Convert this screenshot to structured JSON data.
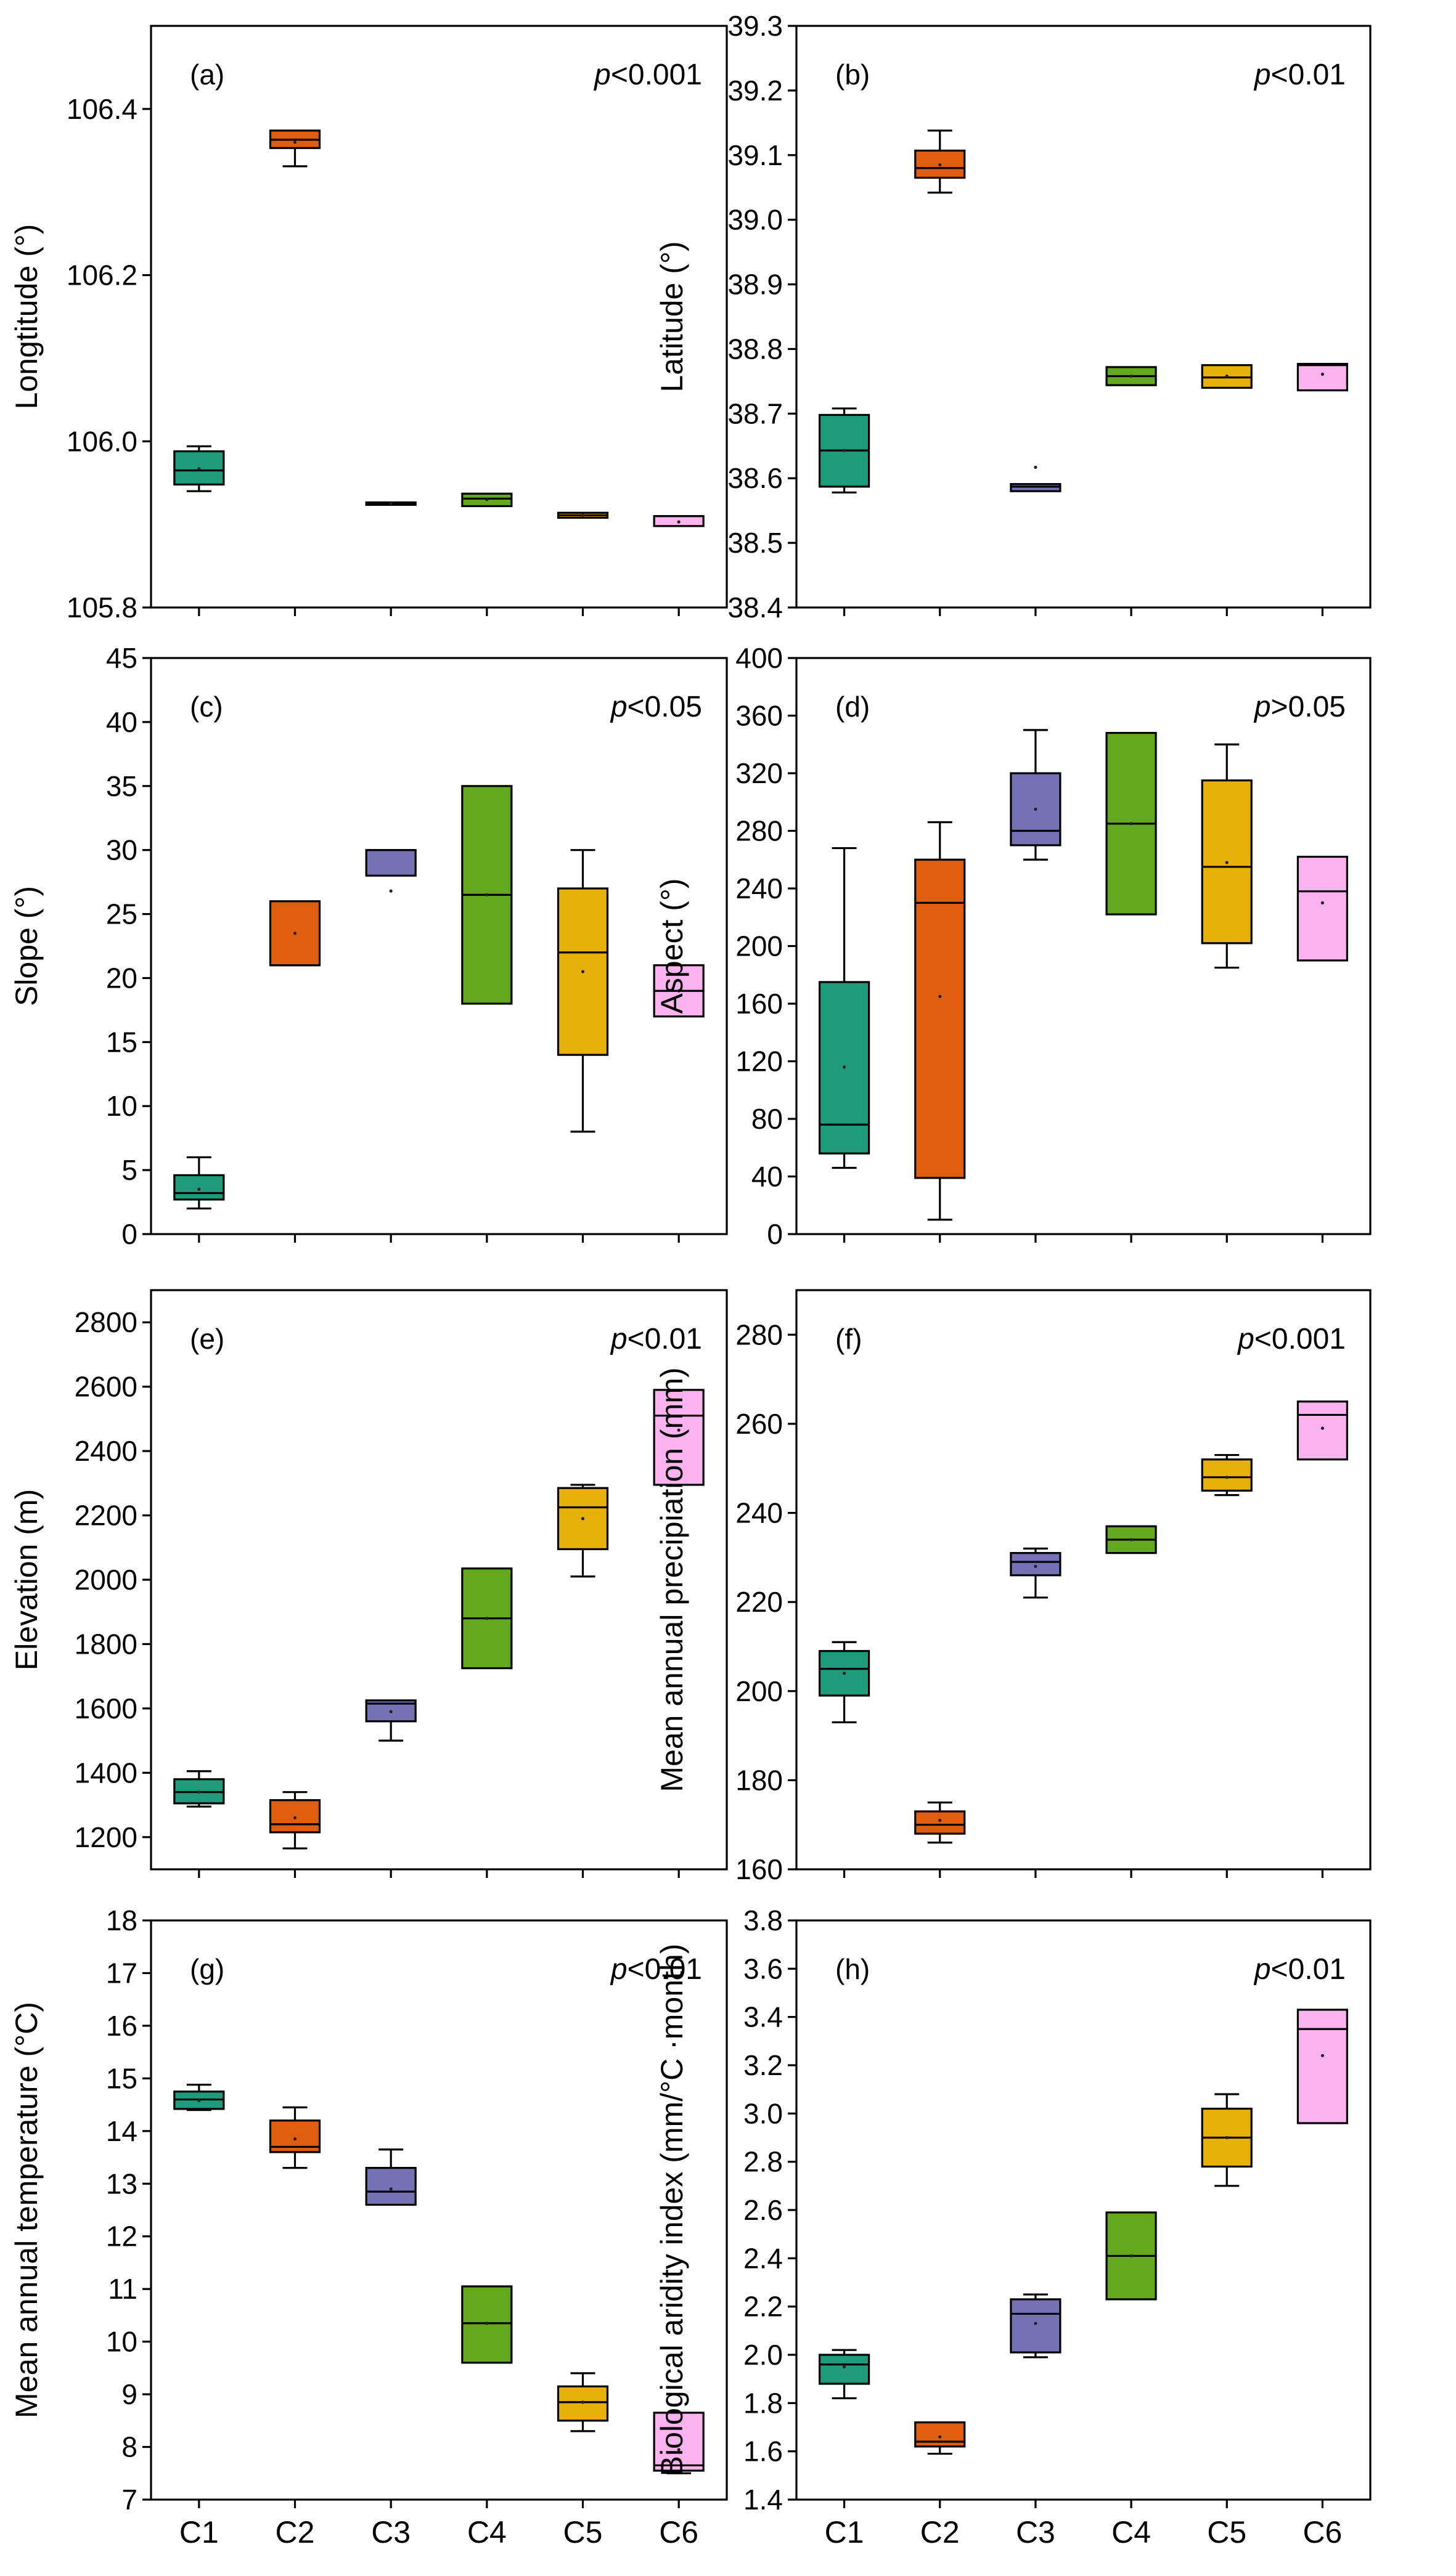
{
  "chart_data": [
    {
      "id": "a",
      "type": "box",
      "panel_label": "(a)",
      "p_prefix": "p",
      "p_suffix": "<0.001",
      "ylabel": "Longtitude (°)",
      "ylim": [
        105.8,
        106.5
      ],
      "yticks": [
        105.8,
        106.0,
        106.2,
        106.4
      ],
      "tick_decimals": 1,
      "categories": [
        "C1",
        "C2",
        "C3",
        "C4",
        "C5",
        "C6"
      ],
      "boxes": [
        {
          "min": 105.94,
          "q1": 105.948,
          "median": 105.965,
          "q3": 105.988,
          "max": 105.994,
          "mean": 105.967
        },
        {
          "min": 106.331,
          "q1": 106.353,
          "median": 106.363,
          "q3": 106.374,
          "max": 106.374,
          "mean": 106.36
        },
        {
          "min": 105.924,
          "q1": 105.924,
          "median": 105.925,
          "q3": 105.926,
          "max": 105.926,
          "mean": 105.925
        },
        {
          "min": 105.922,
          "q1": 105.922,
          "median": 105.931,
          "q3": 105.937,
          "max": 105.937,
          "mean": 105.93
        },
        {
          "min": 105.908,
          "q1": 105.908,
          "median": 105.911,
          "q3": 105.914,
          "max": 105.914,
          "mean": 105.911
        },
        {
          "min": 105.898,
          "q1": 105.898,
          "median": 105.91,
          "q3": 105.91,
          "max": 105.91,
          "mean": 105.903
        }
      ]
    },
    {
      "id": "b",
      "type": "box",
      "panel_label": "(b)",
      "p_prefix": "p",
      "p_suffix": "<0.01",
      "ylabel": "Latitude (°)",
      "ylim": [
        38.4,
        39.3
      ],
      "yticks": [
        38.4,
        38.5,
        38.6,
        38.7,
        38.8,
        38.9,
        39.0,
        39.1,
        39.2,
        39.3
      ],
      "tick_decimals": 1,
      "categories": [
        "C1",
        "C2",
        "C3",
        "C4",
        "C5",
        "C6"
      ],
      "boxes": [
        {
          "min": 38.578,
          "q1": 38.587,
          "median": 38.643,
          "q3": 38.698,
          "max": 38.708,
          "mean": 38.643
        },
        {
          "min": 39.042,
          "q1": 39.065,
          "median": 39.08,
          "q3": 39.107,
          "max": 39.138,
          "mean": 39.085
        },
        {
          "min": 38.58,
          "q1": 38.58,
          "median": 38.587,
          "q3": 38.591,
          "max": 38.591,
          "mean": 38.617
        },
        {
          "min": 38.744,
          "q1": 38.744,
          "median": 38.758,
          "q3": 38.772,
          "max": 38.772,
          "mean": 38.758
        },
        {
          "min": 38.74,
          "q1": 38.74,
          "median": 38.756,
          "q3": 38.775,
          "max": 38.775,
          "mean": 38.758
        },
        {
          "min": 38.736,
          "q1": 38.736,
          "median": 38.775,
          "q3": 38.777,
          "max": 38.777,
          "mean": 38.761
        }
      ]
    },
    {
      "id": "c",
      "type": "box",
      "panel_label": "(c)",
      "p_prefix": "p",
      "p_suffix": "<0.05",
      "ylabel": "Slope (°)",
      "ylim": [
        0,
        45
      ],
      "yticks": [
        0,
        5,
        10,
        15,
        20,
        25,
        30,
        35,
        40,
        45
      ],
      "tick_decimals": 0,
      "categories": [
        "C1",
        "C2",
        "C3",
        "C4",
        "C5",
        "C6"
      ],
      "boxes": [
        {
          "min": 2,
          "q1": 2.7,
          "median": 3.2,
          "q3": 4.6,
          "max": 6,
          "mean": 3.5
        },
        {
          "min": 21,
          "q1": 21,
          "median": 21,
          "q3": 26,
          "max": 26,
          "mean": 23.5
        },
        {
          "min": 28,
          "q1": 28,
          "median": 30,
          "q3": 30,
          "max": 30,
          "mean": 26.8
        },
        {
          "min": 18,
          "q1": 18,
          "median": 26.5,
          "q3": 35,
          "max": 35,
          "mean": 26.5
        },
        {
          "min": 8,
          "q1": 14,
          "median": 22,
          "q3": 27,
          "max": 30,
          "mean": 20.5
        },
        {
          "min": 17,
          "q1": 17,
          "median": 19,
          "q3": 21,
          "max": 21,
          "mean": 19
        }
      ]
    },
    {
      "id": "d",
      "type": "box",
      "panel_label": "(d)",
      "p_prefix": "p",
      "p_suffix": ">0.05",
      "ylabel": "Aspect (°)",
      "ylim": [
        0,
        400
      ],
      "yticks": [
        0,
        40,
        80,
        120,
        160,
        200,
        240,
        280,
        320,
        360,
        400
      ],
      "tick_decimals": 0,
      "categories": [
        "C1",
        "C2",
        "C3",
        "C4",
        "C5",
        "C6"
      ],
      "boxes": [
        {
          "min": 46,
          "q1": 56,
          "median": 76,
          "q3": 175,
          "max": 268,
          "mean": 116
        },
        {
          "min": 10,
          "q1": 39,
          "median": 230,
          "q3": 260,
          "max": 286,
          "mean": 165
        },
        {
          "min": 260,
          "q1": 270,
          "median": 280,
          "q3": 320,
          "max": 350,
          "mean": 295
        },
        {
          "min": 222,
          "q1": 222,
          "median": 285,
          "q3": 348,
          "max": 348,
          "mean": 285
        },
        {
          "min": 185,
          "q1": 202,
          "median": 255,
          "q3": 315,
          "max": 340,
          "mean": 258
        },
        {
          "min": 190,
          "q1": 190,
          "median": 238,
          "q3": 262,
          "max": 262,
          "mean": 230
        }
      ]
    },
    {
      "id": "e",
      "type": "box",
      "panel_label": "(e)",
      "p_prefix": "p",
      "p_suffix": "<0.01",
      "ylabel": "Elevation (m)",
      "ylim": [
        1100,
        2900
      ],
      "yticks": [
        1200,
        1400,
        1600,
        1800,
        2000,
        2200,
        2400,
        2600,
        2800
      ],
      "tick_decimals": 0,
      "categories": [
        "C1",
        "C2",
        "C3",
        "C4",
        "C5",
        "C6"
      ],
      "boxes": [
        {
          "min": 1295,
          "q1": 1305,
          "median": 1340,
          "q3": 1380,
          "max": 1405,
          "mean": 1340
        },
        {
          "min": 1165,
          "q1": 1215,
          "median": 1240,
          "q3": 1315,
          "max": 1340,
          "mean": 1260
        },
        {
          "min": 1500,
          "q1": 1560,
          "median": 1615,
          "q3": 1625,
          "max": 1625,
          "mean": 1590
        },
        {
          "min": 1725,
          "q1": 1725,
          "median": 1880,
          "q3": 2035,
          "max": 2035,
          "mean": 1880
        },
        {
          "min": 2010,
          "q1": 2095,
          "median": 2225,
          "q3": 2285,
          "max": 2295,
          "mean": 2190
        },
        {
          "min": 2295,
          "q1": 2295,
          "median": 2510,
          "q3": 2590,
          "max": 2590,
          "mean": 2465
        }
      ]
    },
    {
      "id": "f",
      "type": "box",
      "panel_label": "(f)",
      "p_prefix": "p",
      "p_suffix": "<0.001",
      "ylabel": "Mean annual precipiation (mm)",
      "ylim": [
        160,
        290
      ],
      "yticks": [
        160,
        180,
        200,
        220,
        240,
        260,
        280
      ],
      "tick_decimals": 0,
      "categories": [
        "C1",
        "C2",
        "C3",
        "C4",
        "C5",
        "C6"
      ],
      "boxes": [
        {
          "min": 193,
          "q1": 199,
          "median": 205,
          "q3": 209,
          "max": 211,
          "mean": 204
        },
        {
          "min": 166,
          "q1": 168,
          "median": 170,
          "q3": 173,
          "max": 175,
          "mean": 171
        },
        {
          "min": 221,
          "q1": 226,
          "median": 229,
          "q3": 231,
          "max": 232,
          "mean": 228
        },
        {
          "min": 231,
          "q1": 231,
          "median": 234,
          "q3": 237,
          "max": 237,
          "mean": 234
        },
        {
          "min": 244,
          "q1": 245,
          "median": 248,
          "q3": 252,
          "max": 253,
          "mean": 248
        },
        {
          "min": 252,
          "q1": 252,
          "median": 262,
          "q3": 265,
          "max": 265,
          "mean": 259
        }
      ]
    },
    {
      "id": "g",
      "type": "box",
      "panel_label": "(g)",
      "p_prefix": "p",
      "p_suffix": "<0.01",
      "ylabel": "Mean annual temperature (°C)",
      "ylim": [
        7,
        18
      ],
      "yticks": [
        7,
        8,
        9,
        10,
        11,
        12,
        13,
        14,
        15,
        16,
        17,
        18
      ],
      "tick_decimals": 0,
      "categories": [
        "C1",
        "C2",
        "C3",
        "C4",
        "C5",
        "C6"
      ],
      "boxes": [
        {
          "min": 14.4,
          "q1": 14.42,
          "median": 14.6,
          "q3": 14.75,
          "max": 14.88,
          "mean": 14.58
        },
        {
          "min": 13.3,
          "q1": 13.6,
          "median": 13.7,
          "q3": 14.2,
          "max": 14.45,
          "mean": 13.85
        },
        {
          "min": 12.6,
          "q1": 12.6,
          "median": 12.85,
          "q3": 13.3,
          "max": 13.65,
          "mean": 12.9
        },
        {
          "min": 9.6,
          "q1": 9.6,
          "median": 10.35,
          "q3": 11.05,
          "max": 11.05,
          "mean": 10.35
        },
        {
          "min": 8.3,
          "q1": 8.5,
          "median": 8.85,
          "q3": 9.15,
          "max": 9.4,
          "mean": 8.85
        },
        {
          "min": 7.5,
          "q1": 7.55,
          "median": 7.65,
          "q3": 8.65,
          "max": 8.65,
          "mean": 7.95
        }
      ]
    },
    {
      "id": "h",
      "type": "box",
      "panel_label": "(h)",
      "p_prefix": "p",
      "p_suffix": "<0.01",
      "ylabel": "Biological aridity index (mm/°C ·month)",
      "ylim": [
        1.4,
        3.8
      ],
      "yticks": [
        1.4,
        1.6,
        1.8,
        2.0,
        2.2,
        2.4,
        2.6,
        2.8,
        3.0,
        3.2,
        3.4,
        3.6,
        3.8
      ],
      "tick_decimals": 1,
      "categories": [
        "C1",
        "C2",
        "C3",
        "C4",
        "C5",
        "C6"
      ],
      "boxes": [
        {
          "min": 1.82,
          "q1": 1.88,
          "median": 1.96,
          "q3": 2.0,
          "max": 2.02,
          "mean": 1.95
        },
        {
          "min": 1.59,
          "q1": 1.62,
          "median": 1.64,
          "q3": 1.72,
          "max": 1.72,
          "mean": 1.66
        },
        {
          "min": 1.99,
          "q1": 2.01,
          "median": 2.17,
          "q3": 2.23,
          "max": 2.25,
          "mean": 2.13
        },
        {
          "min": 2.23,
          "q1": 2.23,
          "median": 2.41,
          "q3": 2.59,
          "max": 2.59,
          "mean": 2.41
        },
        {
          "min": 2.7,
          "q1": 2.78,
          "median": 2.9,
          "q3": 3.02,
          "max": 3.08,
          "mean": 2.9
        },
        {
          "min": 2.96,
          "q1": 2.96,
          "median": 3.35,
          "q3": 3.43,
          "max": 3.43,
          "mean": 3.24
        }
      ]
    }
  ],
  "colors": {
    "C1": "#1e9a7c",
    "C2": "#de5d0f",
    "C3": "#7571b6",
    "C4": "#64a81f",
    "C5": "#e8b00a",
    "C6": "#fbb2ee"
  }
}
